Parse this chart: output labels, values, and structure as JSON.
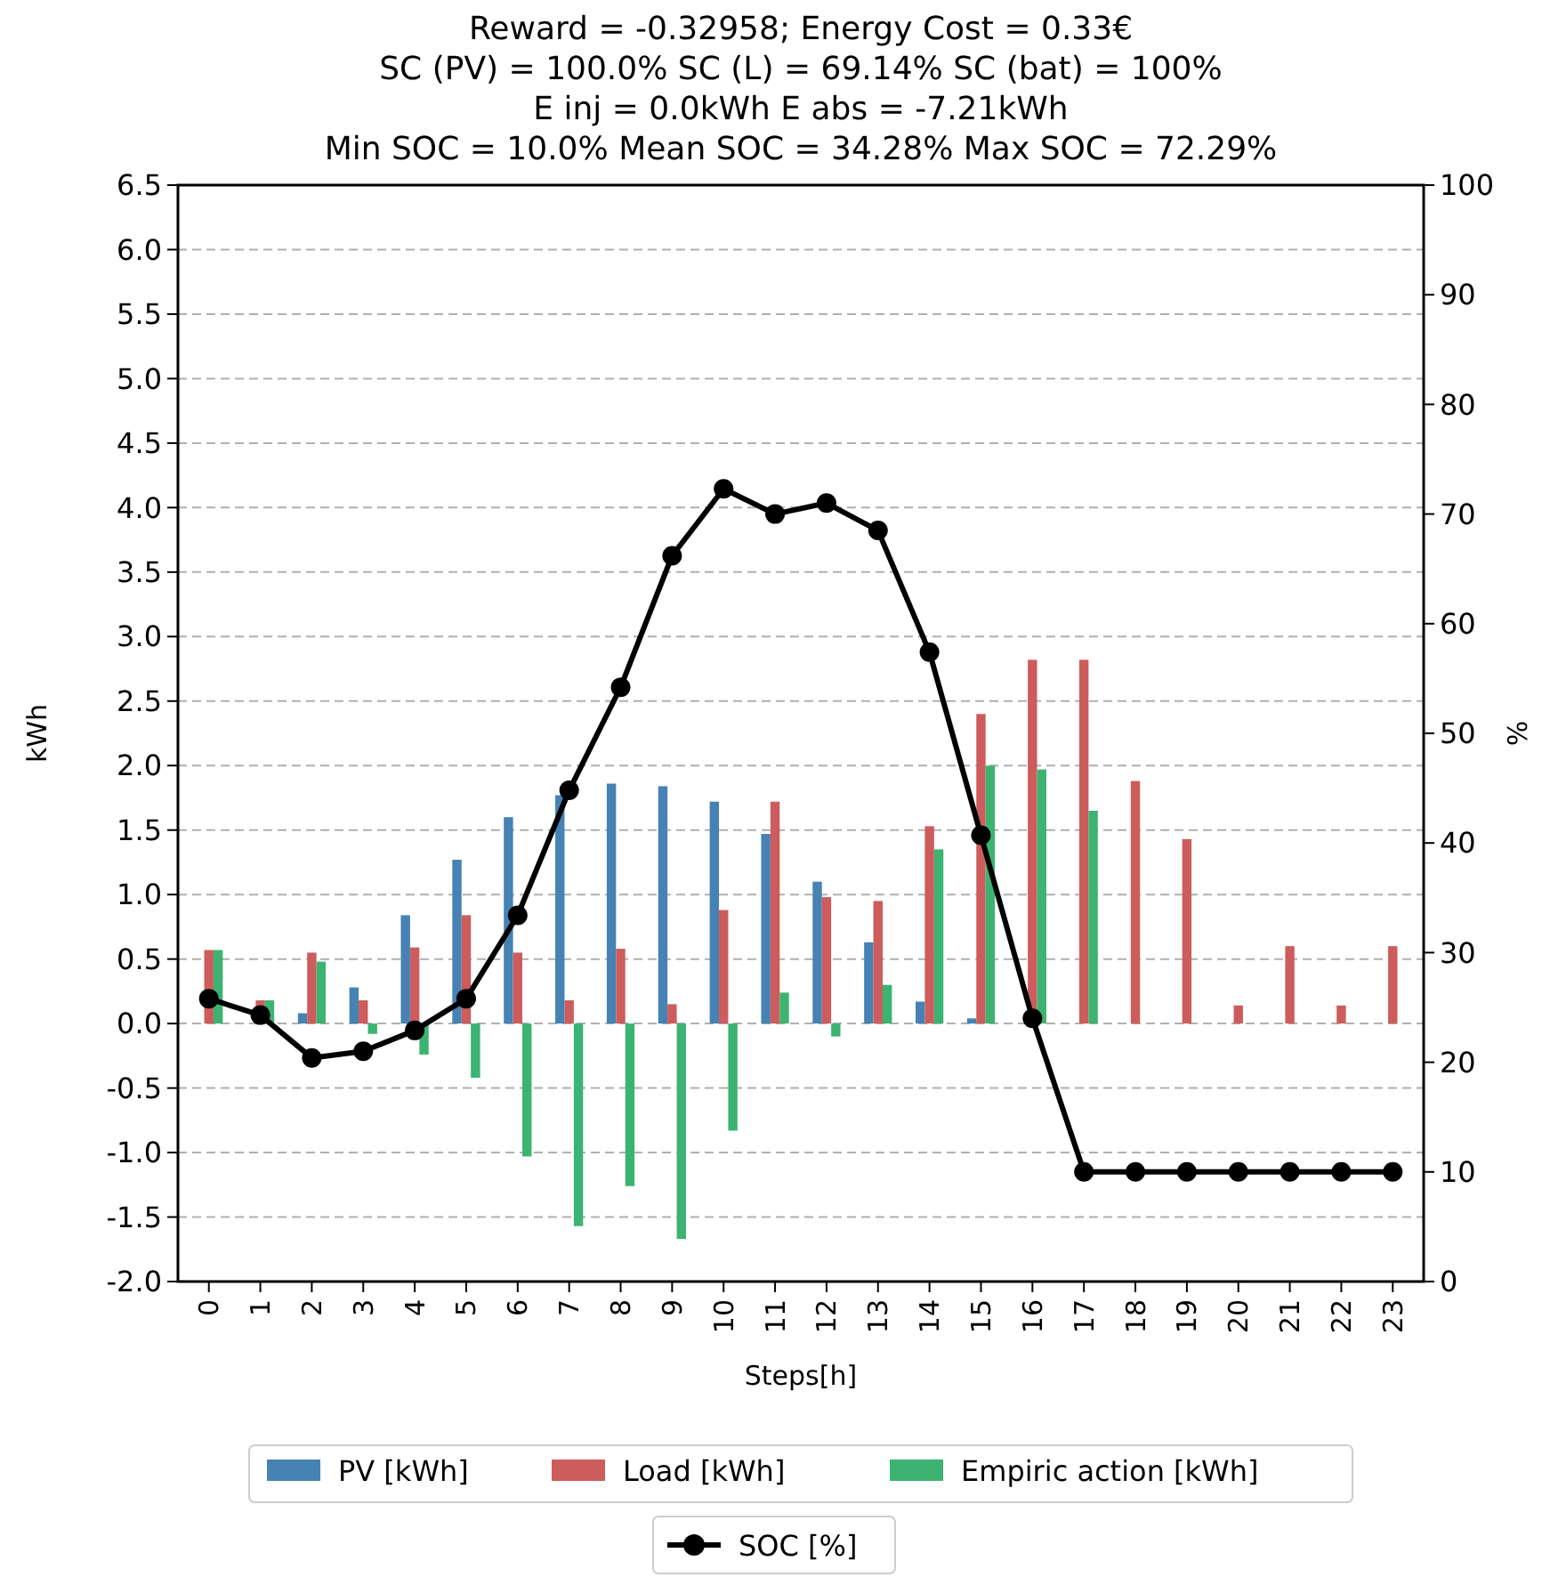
{
  "chart_data": {
    "type": "bar",
    "title": "Reward = -0.32958; Energy Cost = 0.33€\nSC (PV) = 100.0%  SC (L) = 69.14%  SC (bat) = 100%\nE inj = 0.0kWh  E abs = -7.21kWh\nMin SOC = 10.0%   Mean SOC = 34.28%   Max SOC = 72.29%",
    "xlabel": "Steps[h]",
    "ylabel": "kWh",
    "y2label": "%",
    "categories": [
      "0",
      "1",
      "2",
      "3",
      "4",
      "5",
      "6",
      "7",
      "8",
      "9",
      "10",
      "11",
      "12",
      "13",
      "14",
      "15",
      "16",
      "17",
      "18",
      "19",
      "20",
      "21",
      "22",
      "23"
    ],
    "series": [
      {
        "name": "PV [kWh]",
        "color": "#4682b4",
        "values": [
          0,
          0,
          0.08,
          0.28,
          0.84,
          1.27,
          1.6,
          1.77,
          1.86,
          1.84,
          1.72,
          1.47,
          1.1,
          0.63,
          0.17,
          0.04,
          0,
          0,
          0,
          0,
          0,
          0,
          0,
          0
        ]
      },
      {
        "name": "Load [kWh]",
        "color": "#cd5c5c",
        "values": [
          0.57,
          0.18,
          0.55,
          0.18,
          0.59,
          0.84,
          0.55,
          0.18,
          0.58,
          0.15,
          0.88,
          1.72,
          0.98,
          0.95,
          1.53,
          2.4,
          2.82,
          2.82,
          1.88,
          1.43,
          0.14,
          0.6,
          0.14,
          0.6
        ]
      },
      {
        "name": "Empiric action [kWh]",
        "color": "#3cb371",
        "values": [
          0.57,
          0.18,
          0.48,
          -0.08,
          -0.24,
          -0.42,
          -1.03,
          -1.57,
          -1.26,
          -1.67,
          -0.83,
          0.24,
          -0.1,
          0.3,
          1.35,
          2.0,
          1.97,
          1.65,
          0,
          0,
          0,
          0,
          0,
          0
        ]
      },
      {
        "name": "SOC [%]",
        "type": "line",
        "axis": "y2",
        "color": "#000000",
        "marker": "circle",
        "values": [
          25.8,
          24.3,
          20.4,
          21,
          22.9,
          25.8,
          33.4,
          44.8,
          54.2,
          66.2,
          72.3,
          70,
          71,
          68.5,
          57.4,
          40.7,
          24,
          10,
          10,
          10,
          10,
          10,
          10,
          10
        ]
      }
    ],
    "ylim": [
      -2,
      6.5
    ],
    "yticks": [
      {
        "value": -2,
        "label": "-2.0"
      },
      {
        "value": -1.5,
        "label": "-1.5"
      },
      {
        "value": -1,
        "label": "-1.0"
      },
      {
        "value": -0.5,
        "label": "-0.5"
      },
      {
        "value": 0,
        "label": "0.0"
      },
      {
        "value": 0.5,
        "label": "0.5"
      },
      {
        "value": 1,
        "label": "1.0"
      },
      {
        "value": 1.5,
        "label": "1.5"
      },
      {
        "value": 2,
        "label": "2.0"
      },
      {
        "value": 2.5,
        "label": "2.5"
      },
      {
        "value": 3,
        "label": "3.0"
      },
      {
        "value": 3.5,
        "label": "3.5"
      },
      {
        "value": 4,
        "label": "4.0"
      },
      {
        "value": 4.5,
        "label": "4.5"
      },
      {
        "value": 5,
        "label": "5.0"
      },
      {
        "value": 5.5,
        "label": "5.5"
      },
      {
        "value": 6,
        "label": "6.0"
      },
      {
        "value": 6.5,
        "label": "6.5"
      }
    ],
    "y2lim": [
      0,
      100
    ],
    "y2ticks": [
      0,
      10,
      20,
      30,
      40,
      50,
      60,
      70,
      80,
      90,
      100
    ],
    "grid": "y",
    "legend": "bottom",
    "line_style": "solid"
  }
}
